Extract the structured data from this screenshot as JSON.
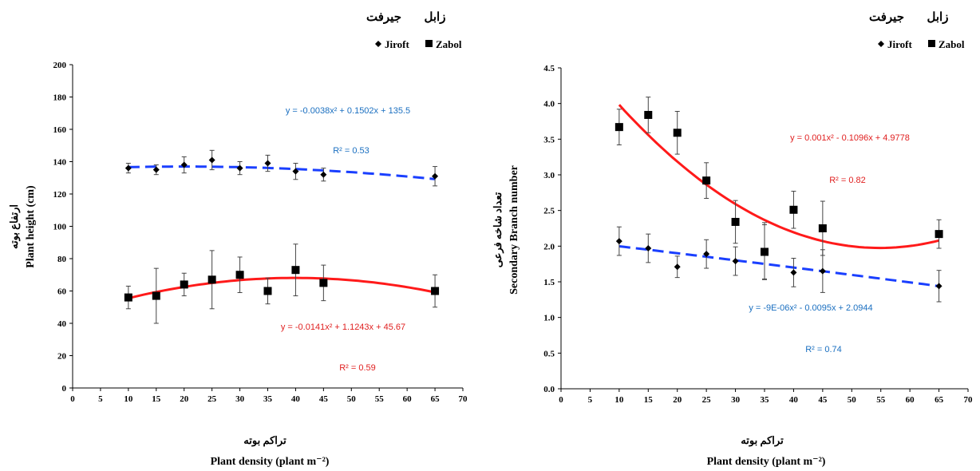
{
  "legend": {
    "fa_labels": [
      "جيرفت",
      "زابل"
    ],
    "items": [
      {
        "marker": "diamond",
        "label": "Jiroft"
      },
      {
        "marker": "square",
        "label": "Zabol"
      }
    ]
  },
  "colors": {
    "jiroft_trend": "#1a3fff",
    "zabol_trend": "#ff1a1a",
    "jiroft_eq_text": "#1a6fc0",
    "zabol_eq_text": "#e02020",
    "markers": "#000000"
  },
  "chart_data": [
    {
      "type": "scatter",
      "title": "",
      "xlabel": "Plant density (plant m⁻²)",
      "xlabel_fa": "تراكم بوته",
      "ylabel": "Plant height (cm)",
      "ylabel_fa": "ارتفاع بوته",
      "xlim": [
        0,
        70
      ],
      "ylim": [
        0,
        200
      ],
      "x_ticks": [
        "0",
        "5",
        "10",
        "15",
        "20",
        "25",
        "30",
        "35",
        "40",
        "45",
        "50",
        "55",
        "60",
        "65",
        "70"
      ],
      "y_ticks": [
        "0",
        "20",
        "40",
        "60",
        "80",
        "100",
        "120",
        "140",
        "160",
        "180",
        "200"
      ],
      "series": [
        {
          "name": "Jiroft",
          "marker": "diamond",
          "x": [
            10,
            15,
            20,
            25,
            30,
            35,
            40,
            45,
            65
          ],
          "y": [
            136,
            135,
            138,
            141,
            136,
            139,
            134,
            132,
            131
          ],
          "error": [
            3,
            3,
            5,
            6,
            4,
            5,
            5,
            4,
            6
          ],
          "trend": {
            "a": -0.0038,
            "b": 0.1502,
            "c": 135.5,
            "style": "dashed",
            "from": 10,
            "to": 65
          },
          "equation": "y = -0.0038x² + 0.1502x + 135.5",
          "r2": "R² = 0.53"
        },
        {
          "name": "Zabol",
          "marker": "square",
          "x": [
            10,
            15,
            20,
            25,
            30,
            35,
            40,
            45,
            65
          ],
          "y": [
            56,
            57,
            64,
            67,
            70,
            60,
            73,
            65,
            60
          ],
          "error": [
            7,
            17,
            7,
            18,
            11,
            8,
            16,
            11,
            10
          ],
          "trend": {
            "a": -0.0141,
            "b": 1.1243,
            "c": 45.67,
            "style": "solid",
            "from": 10,
            "to": 65
          },
          "equation": "y = -0.0141x² + 1.1243x + 45.67",
          "r2": "R² = 0.59"
        }
      ]
    },
    {
      "type": "scatter",
      "title": "",
      "xlabel": "Plant density (plant m⁻²)",
      "xlabel_fa": "تراكم بوته",
      "ylabel": "Secondary Branch number",
      "ylabel_fa": "تعداد شاخه فرعی",
      "xlim": [
        0,
        70
      ],
      "ylim": [
        0,
        4.5
      ],
      "x_ticks": [
        "0",
        "5",
        "10",
        "15",
        "20",
        "25",
        "30",
        "35",
        "40",
        "45",
        "50",
        "55",
        "60",
        "65",
        "70"
      ],
      "y_ticks": [
        "0.0",
        "0.5",
        "1.0",
        "1.5",
        "2.0",
        "2.5",
        "3.0",
        "3.5",
        "4.0",
        "4.5"
      ],
      "series": [
        {
          "name": "Jiroft",
          "marker": "diamond",
          "x": [
            10,
            15,
            20,
            25,
            30,
            35,
            40,
            45,
            65
          ],
          "y": [
            2.07,
            1.97,
            1.71,
            1.89,
            1.79,
            1.93,
            1.63,
            1.65,
            1.44
          ],
          "error": [
            0.2,
            0.2,
            0.15,
            0.2,
            0.2,
            0.4,
            0.2,
            0.3,
            0.22
          ],
          "trend": {
            "a": -9e-06,
            "b": -0.0095,
            "c": 2.0944,
            "style": "dashed",
            "from": 10,
            "to": 65
          },
          "equation": "y = -9E-06x² - 0.0095x + 2.0944",
          "r2": "R² = 0.74"
        },
        {
          "name": "Zabol",
          "marker": "square",
          "x": [
            10,
            15,
            20,
            25,
            30,
            35,
            40,
            45,
            65
          ],
          "y": [
            3.67,
            3.84,
            3.59,
            2.92,
            2.34,
            1.92,
            2.51,
            2.25,
            2.17
          ],
          "error": [
            0.25,
            0.25,
            0.3,
            0.25,
            0.3,
            0.38,
            0.26,
            0.38,
            0.2
          ],
          "trend": {
            "a": 0.001,
            "b": -0.1096,
            "c": 4.9778,
            "style": "solid",
            "from": 10,
            "to": 65
          },
          "equation": "y = 0.001x² - 0.1096x + 4.9778",
          "r2": "R² = 0.82"
        }
      ]
    }
  ]
}
